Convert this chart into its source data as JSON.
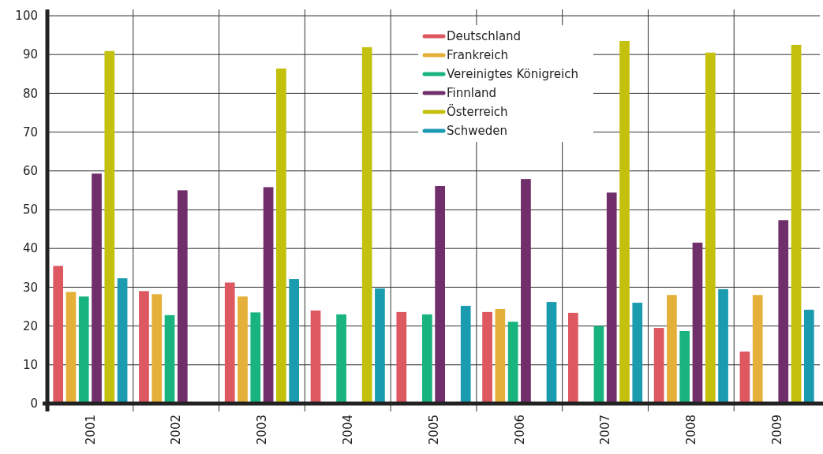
{
  "chart_data": {
    "type": "bar",
    "categories": [
      "2001",
      "2002",
      "2003",
      "2004",
      "2005",
      "2006",
      "2007",
      "2008",
      "2009"
    ],
    "series": [
      {
        "name": "Deutschland",
        "color": "#dd5860",
        "values": [
          35.5,
          29,
          31.2,
          24,
          23.6,
          23.6,
          23.4,
          19.5,
          13.4
        ]
      },
      {
        "name": "Frankreich",
        "color": "#e5b03a",
        "values": [
          28.8,
          28.2,
          27.6,
          null,
          null,
          24.4,
          null,
          28,
          28
        ]
      },
      {
        "name": "Vereinigtes Königreich",
        "color": "#18b37e",
        "values": [
          27.6,
          22.8,
          23.5,
          23,
          23,
          21.1,
          20,
          18.7,
          null
        ]
      },
      {
        "name": "Finnland",
        "color": "#702e6a",
        "values": [
          59.3,
          55,
          55.8,
          null,
          56.1,
          57.9,
          54.4,
          41.5,
          47.3
        ]
      },
      {
        "name": "Österreich",
        "color": "#c3c00e",
        "values": [
          90.9,
          null,
          86.4,
          91.9,
          null,
          null,
          93.5,
          90.5,
          92.5
        ]
      },
      {
        "name": "Schweden",
        "color": "#1b9bb0",
        "values": [
          32.3,
          null,
          32.1,
          29.7,
          25.2,
          26.2,
          26,
          29.5,
          24.2
        ]
      }
    ],
    "ylim": [
      0,
      100
    ],
    "yticks": [
      0,
      10,
      20,
      30,
      40,
      50,
      60,
      70,
      80,
      90,
      100
    ],
    "grid": true,
    "legend": "top"
  }
}
